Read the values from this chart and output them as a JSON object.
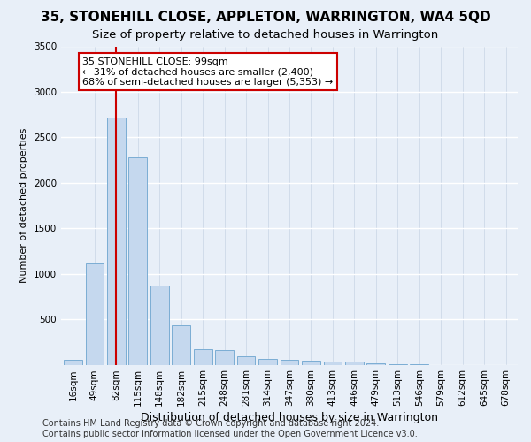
{
  "title1": "35, STONEHILL CLOSE, APPLETON, WARRINGTON, WA4 5QD",
  "title2": "Size of property relative to detached houses in Warrington",
  "xlabel": "Distribution of detached houses by size in Warrington",
  "ylabel": "Number of detached properties",
  "categories": [
    "16sqm",
    "49sqm",
    "82sqm",
    "115sqm",
    "148sqm",
    "182sqm",
    "215sqm",
    "248sqm",
    "281sqm",
    "314sqm",
    "347sqm",
    "380sqm",
    "413sqm",
    "446sqm",
    "479sqm",
    "513sqm",
    "546sqm",
    "579sqm",
    "612sqm",
    "645sqm",
    "678sqm"
  ],
  "values": [
    55,
    1110,
    2720,
    2280,
    875,
    430,
    175,
    165,
    95,
    60,
    55,
    45,
    35,
    30,
    15,
    5,
    5,
    0,
    0,
    0,
    0
  ],
  "bar_color": "#c5d8ee",
  "bar_edge_color": "#7badd4",
  "background_color": "#e8eff8",
  "grid_color": "#d0d8e8",
  "annotation_text": "35 STONEHILL CLOSE: 99sqm\n← 31% of detached houses are smaller (2,400)\n68% of semi-detached houses are larger (5,353) →",
  "annotation_box_color": "#ffffff",
  "annotation_box_edge_color": "#cc0000",
  "footer_line1": "Contains HM Land Registry data © Crown copyright and database right 2024.",
  "footer_line2": "Contains public sector information licensed under the Open Government Licence v3.0.",
  "ylim": [
    0,
    3500
  ],
  "title1_fontsize": 11,
  "title2_fontsize": 9.5,
  "xlabel_fontsize": 9,
  "ylabel_fontsize": 8,
  "tick_fontsize": 7.5,
  "annotation_fontsize": 8,
  "footer_fontsize": 7
}
